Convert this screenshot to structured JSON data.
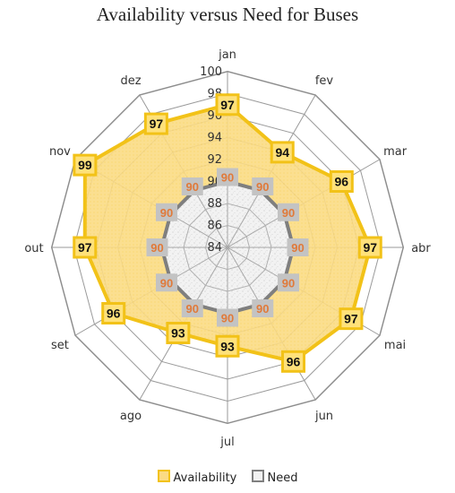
{
  "chart_data": {
    "type": "radar",
    "title": "Availability versus Need for Buses",
    "categories": [
      "jan",
      "fev",
      "mar",
      "abr",
      "mai",
      "jun",
      "jul",
      "ago",
      "set",
      "out",
      "nov",
      "dez"
    ],
    "series": [
      {
        "name": "Availability",
        "values": [
          97,
          94,
          96,
          97,
          97,
          96,
          93,
          93,
          96,
          97,
          99,
          97
        ],
        "color": "#f2c218"
      },
      {
        "name": "Need",
        "values": [
          90,
          90,
          90,
          90,
          90,
          90,
          90,
          90,
          90,
          90,
          90,
          90
        ],
        "color": "#7f7f7f"
      }
    ],
    "r_range": [
      84,
      100
    ],
    "r_ticks": [
      84,
      86,
      88,
      90,
      92,
      94,
      96,
      98,
      100
    ],
    "grid": true,
    "legend_position": "bottom"
  }
}
